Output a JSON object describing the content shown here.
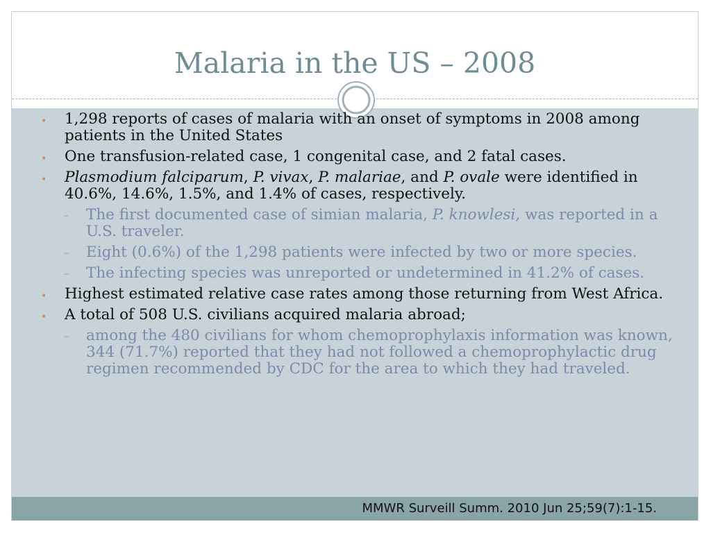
{
  "slide": {
    "title": "Malaria in the US – 2008",
    "citation": "MMWR Surveill Summ. 2010 Jun 25;59(7):1-15."
  },
  "bullets": {
    "b1": "1,298 reports of cases of malaria with an onset of symptoms in 2008 among patients in the United States",
    "b2": "One transfusion-related case, 1 congenital case, and 2 fatal cases.",
    "b3": {
      "s1": "Plasmodium falciparum",
      "s2": ", ",
      "s3": "P. vivax",
      "s4": ", ",
      "s5": "P. malariae",
      "s6": ", and ",
      "s7": "P. ovale",
      "s8": " were identified in 40.6%, 14.6%, 1.5%, and 1.4% of cases, respectively."
    },
    "sub1": {
      "a": "The first documented case of simian malaria, ",
      "b": "P. knowlesi,",
      "c": " was reported in a U.S. traveler."
    },
    "sub2": "Eight (0.6%) of the 1,298 patients were infected by two or more species.",
    "sub3": "The infecting species was unreported or undetermined in 41.2% of cases.",
    "b4": "Highest estimated relative case rates among those returning from West Africa.",
    "b5": "A total of 508 U.S. civilians acquired malaria abroad;",
    "sub4": "among the 480 civilians for whom chemoprophylaxis information was known, 344 (71.7%) reported that they had not followed a chemoprophylactic drug regimen recommended by CDC for the area to which they had traveled.",
    "bullet_marker": "•",
    "sub_marker": "–"
  },
  "colors": {
    "title": "#6f8d96",
    "content_background": "#c8d2d9",
    "footer_bar": "#8aa5a8",
    "sub_text": "#7d8aa9",
    "marker": "#d08a5a"
  },
  "icons": {
    "ornament": "double-circle-ornament-icon"
  }
}
